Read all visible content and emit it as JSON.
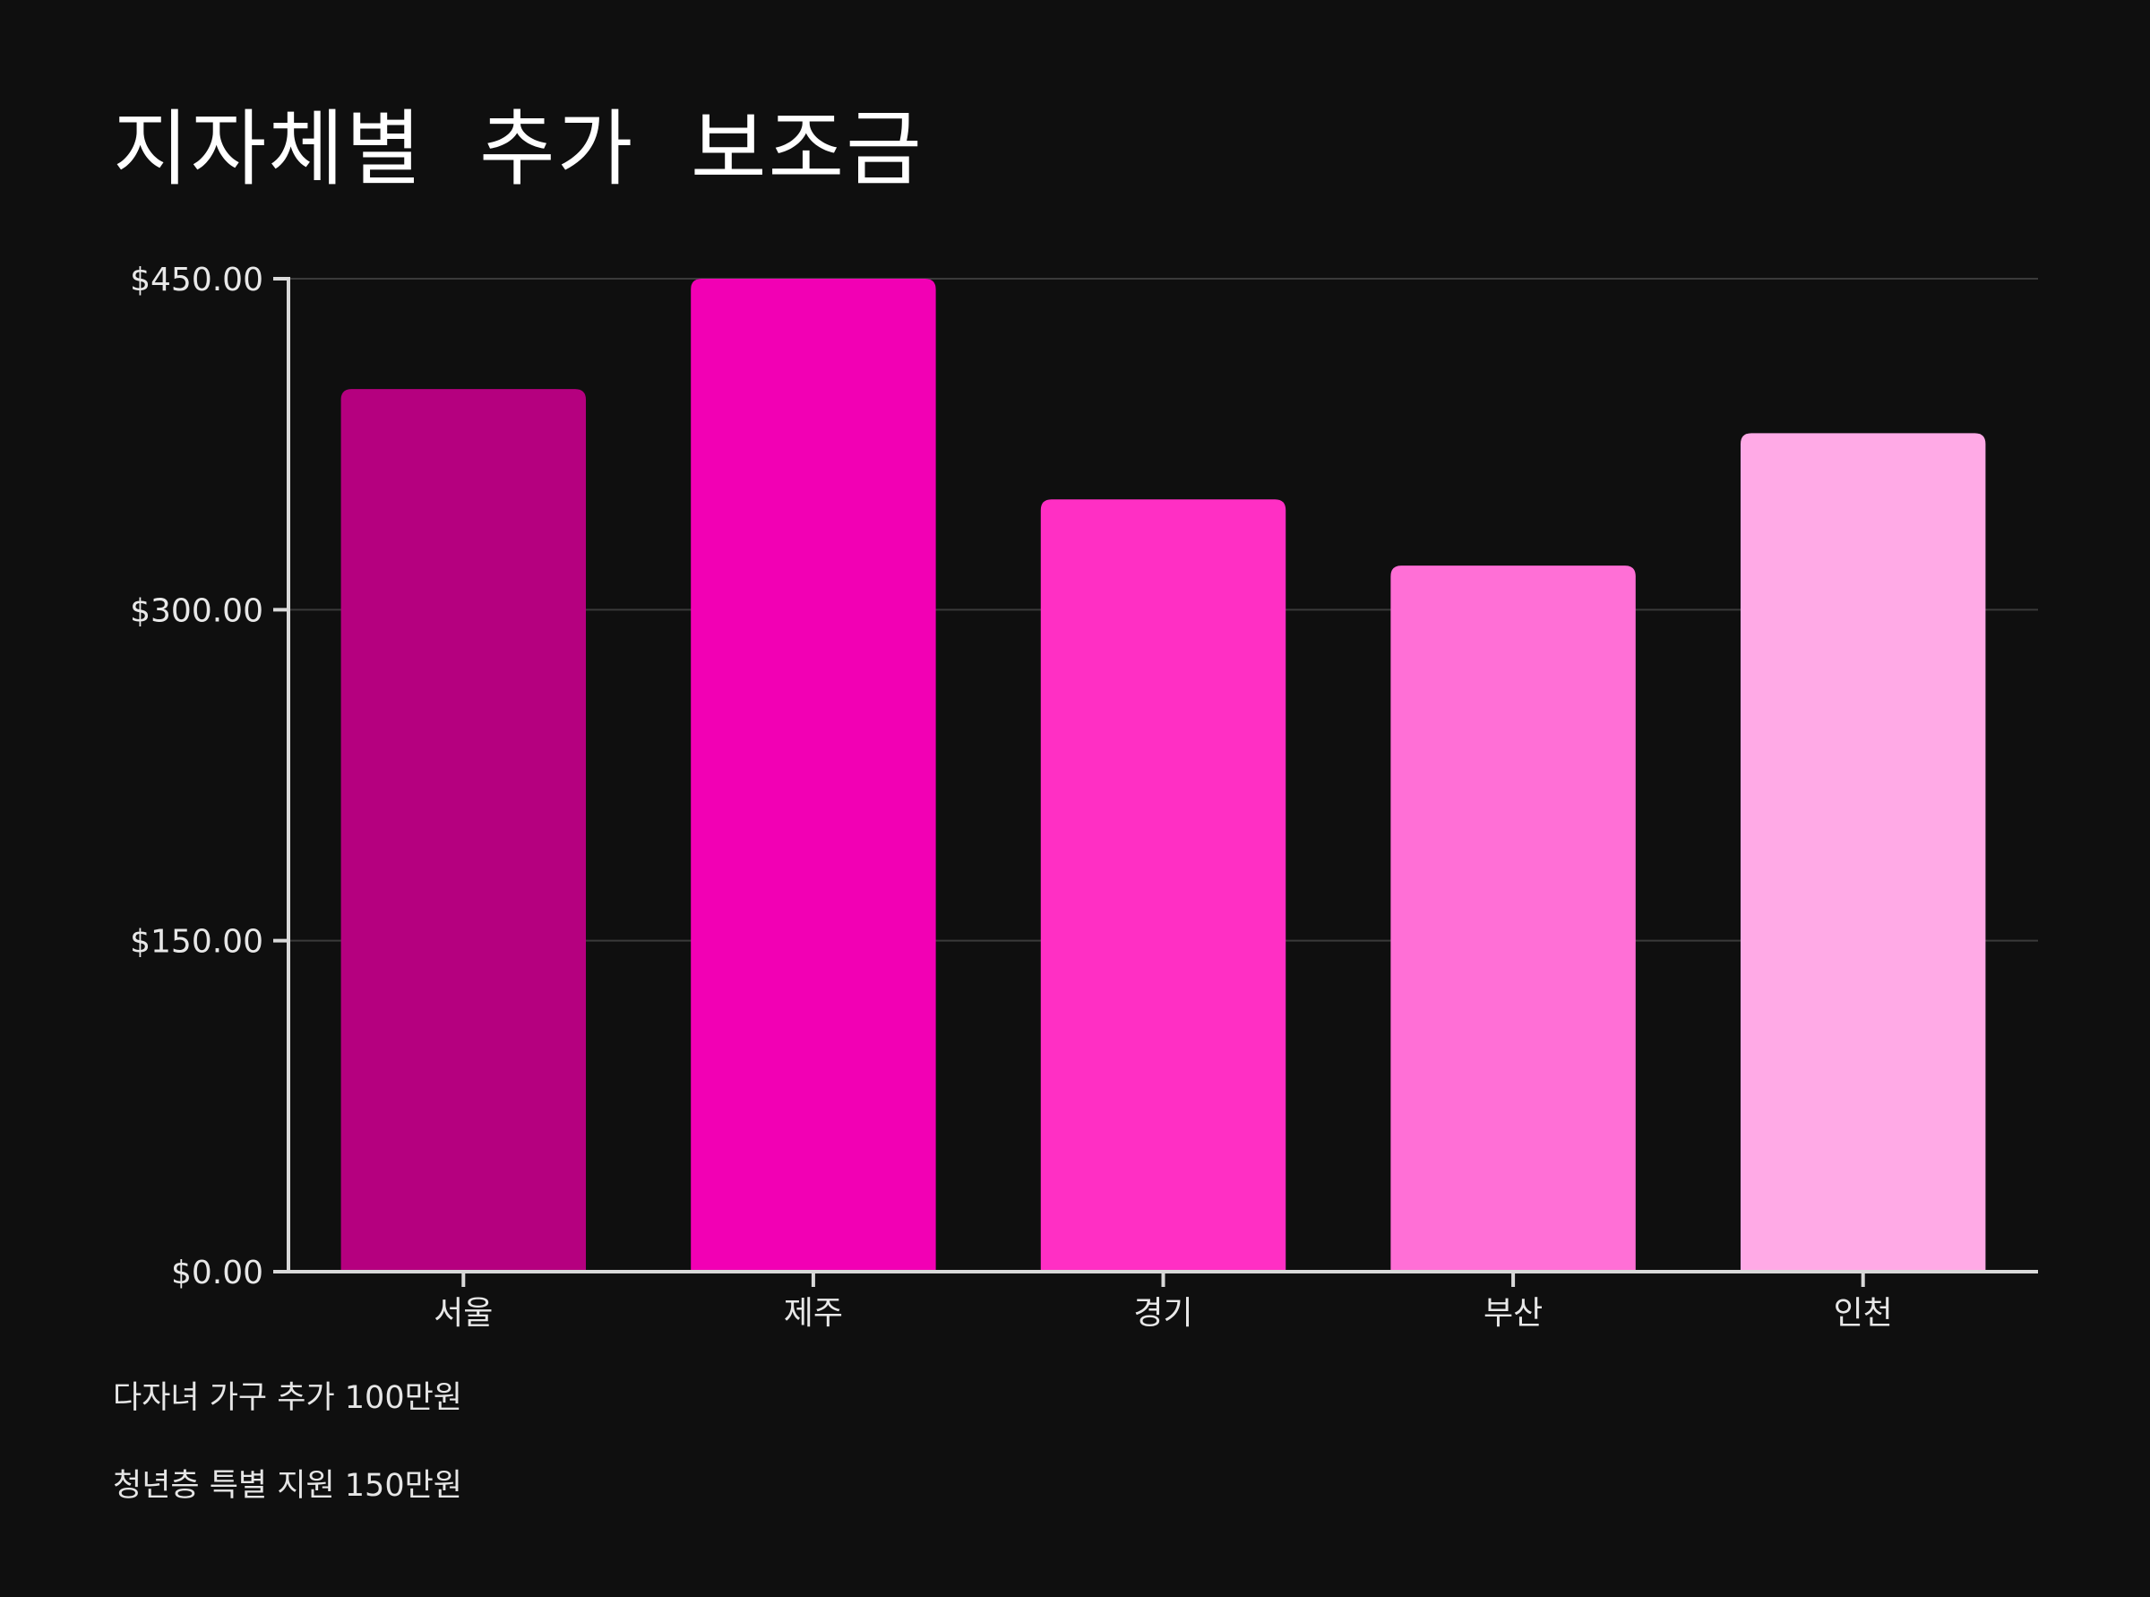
{
  "chart_data": {
    "type": "bar",
    "title": "지자체별  추가  보조금",
    "categories": [
      "서울",
      "제주",
      "경기",
      "부산",
      "인천"
    ],
    "values": [
      400,
      450,
      350,
      320,
      380
    ],
    "colors": [
      "#b5007f",
      "#f200b4",
      "#ff2fc4",
      "#ff6fd6",
      "#ffaae6"
    ],
    "ylim": [
      0,
      450
    ],
    "yticks": [
      0,
      150,
      300,
      450
    ],
    "ytick_labels": [
      "$0.00",
      "$150.00",
      "$300.00",
      "$450.00"
    ],
    "xlabel": "",
    "ylabel": "",
    "grid": true,
    "background": "#0f0f0f",
    "grid_color": "#3a3a3a",
    "axis_color": "#d9d9d9"
  },
  "notes": [
    "다자녀 가구 추가 100만원",
    "청년층 특별 지원 150만원"
  ]
}
